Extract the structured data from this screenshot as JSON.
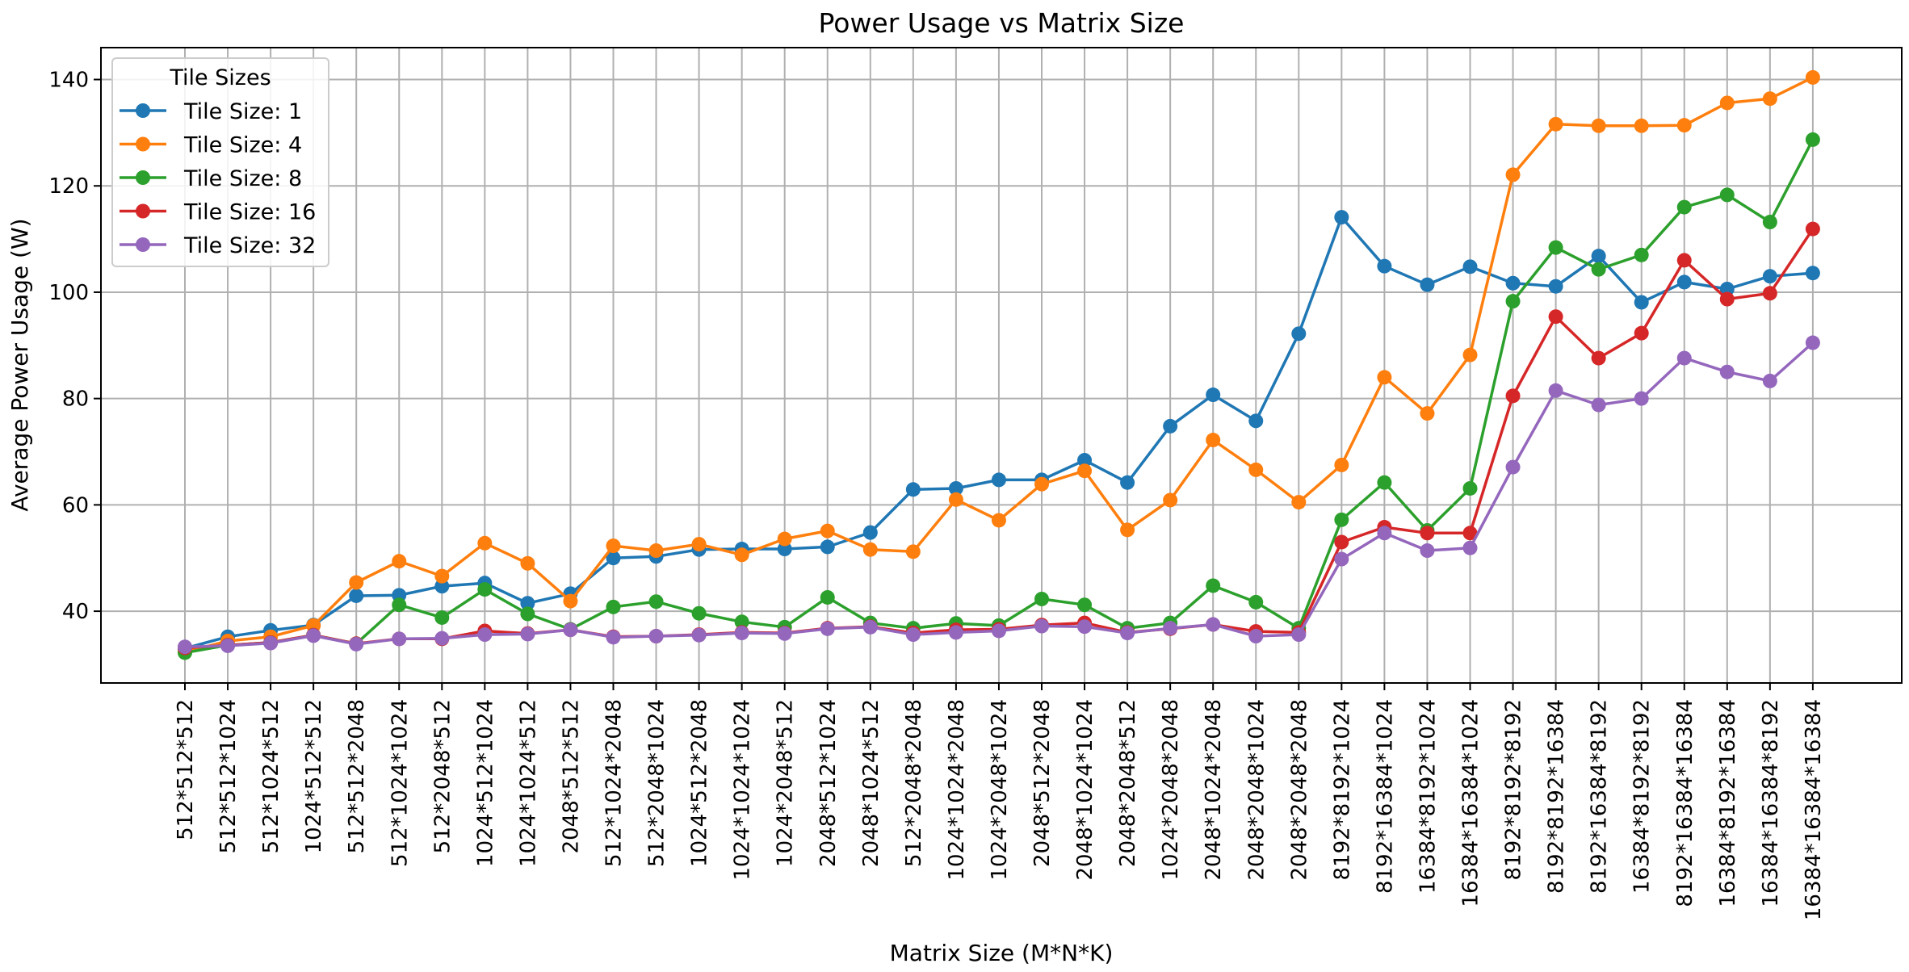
{
  "chart_data": {
    "type": "line",
    "title": "Power Usage vs Matrix Size",
    "xlabel": "Matrix Size (M*N*K)",
    "ylabel": "Average Power Usage (W)",
    "ylim": [
      26.5,
      146
    ],
    "yticks": [
      40,
      60,
      80,
      100,
      120,
      140
    ],
    "grid": true,
    "legend": {
      "title": "Tile Sizes",
      "position": "top-left"
    },
    "categories": [
      "512*512*512",
      "512*512*1024",
      "512*1024*512",
      "1024*512*512",
      "512*512*2048",
      "512*1024*1024",
      "512*2048*512",
      "1024*512*1024",
      "1024*1024*512",
      "2048*512*512",
      "512*1024*2048",
      "512*2048*1024",
      "1024*512*2048",
      "1024*1024*1024",
      "1024*2048*512",
      "2048*512*1024",
      "2048*1024*512",
      "512*2048*2048",
      "1024*1024*2048",
      "1024*2048*1024",
      "2048*512*2048",
      "2048*1024*1024",
      "2048*2048*512",
      "1024*2048*2048",
      "2048*1024*2048",
      "2048*2048*1024",
      "2048*2048*2048",
      "8192*8192*1024",
      "8192*16384*1024",
      "16384*8192*1024",
      "16384*16384*1024",
      "8192*8192*8192",
      "8192*8192*16384",
      "8192*16384*8192",
      "16384*8192*8192",
      "8192*16384*16384",
      "16384*8192*16384",
      "16384*16384*8192",
      "16384*16384*16384"
    ],
    "series": [
      {
        "name": "Tile Size: 1",
        "color": "#1f77b4",
        "values": [
          33.0,
          35.2,
          36.4,
          37.4,
          42.9,
          43.0,
          44.7,
          45.3,
          41.5,
          43.3,
          50.0,
          50.3,
          51.6,
          51.7,
          51.7,
          52.1,
          54.8,
          62.9,
          63.1,
          64.7,
          64.7,
          68.4,
          64.2,
          74.8,
          80.7,
          75.8,
          92.2,
          114.1,
          104.9,
          101.4,
          104.8,
          101.7,
          101.1,
          106.8,
          98.1,
          101.9,
          100.6,
          103.0,
          103.6
        ]
      },
      {
        "name": "Tile Size: 4",
        "color": "#ff7f0e",
        "values": [
          32.3,
          34.4,
          35.2,
          37.3,
          45.4,
          49.4,
          46.6,
          52.8,
          49.0,
          41.9,
          52.3,
          51.4,
          52.6,
          50.6,
          53.6,
          55.1,
          51.6,
          51.2,
          61.0,
          57.1,
          63.9,
          66.4,
          55.3,
          60.9,
          72.2,
          66.6,
          60.5,
          67.5,
          84.0,
          77.2,
          88.2,
          122.1,
          131.6,
          131.3,
          131.3,
          131.4,
          135.6,
          136.4,
          140.4
        ]
      },
      {
        "name": "Tile Size: 8",
        "color": "#2ca02c",
        "values": [
          32.2,
          33.6,
          34.1,
          35.5,
          33.9,
          41.2,
          38.8,
          44.1,
          39.5,
          36.6,
          40.8,
          41.8,
          39.6,
          38.0,
          37.0,
          42.6,
          37.8,
          36.8,
          37.7,
          37.3,
          42.3,
          41.2,
          36.8,
          37.8,
          44.8,
          41.7,
          36.8,
          57.2,
          64.2,
          55.2,
          63.1,
          98.3,
          108.4,
          104.3,
          107.0,
          116.0,
          118.3,
          113.2,
          128.7
        ]
      },
      {
        "name": "Tile Size: 16",
        "color": "#d62728",
        "values": [
          33.1,
          33.6,
          34.1,
          35.5,
          33.9,
          34.8,
          34.8,
          36.3,
          35.8,
          36.5,
          35.2,
          35.3,
          35.6,
          36.0,
          35.9,
          36.8,
          37.1,
          35.9,
          36.5,
          36.6,
          37.4,
          37.8,
          36.0,
          36.7,
          37.5,
          36.2,
          36.0,
          53.0,
          55.8,
          54.7,
          54.7,
          80.5,
          95.4,
          87.6,
          92.3,
          106.0,
          98.7,
          99.8,
          111.9
        ]
      },
      {
        "name": "Tile Size: 32",
        "color": "#9467bd",
        "values": [
          33.3,
          33.5,
          34.0,
          35.4,
          33.8,
          34.8,
          34.9,
          35.6,
          35.7,
          36.5,
          35.1,
          35.3,
          35.5,
          35.9,
          35.8,
          36.7,
          37.0,
          35.6,
          36.0,
          36.3,
          37.2,
          37.1,
          35.9,
          36.8,
          37.5,
          35.3,
          35.6,
          49.8,
          54.7,
          51.4,
          51.9,
          67.1,
          81.5,
          78.8,
          80.0,
          87.6,
          85.0,
          83.3,
          90.5
        ]
      }
    ]
  }
}
